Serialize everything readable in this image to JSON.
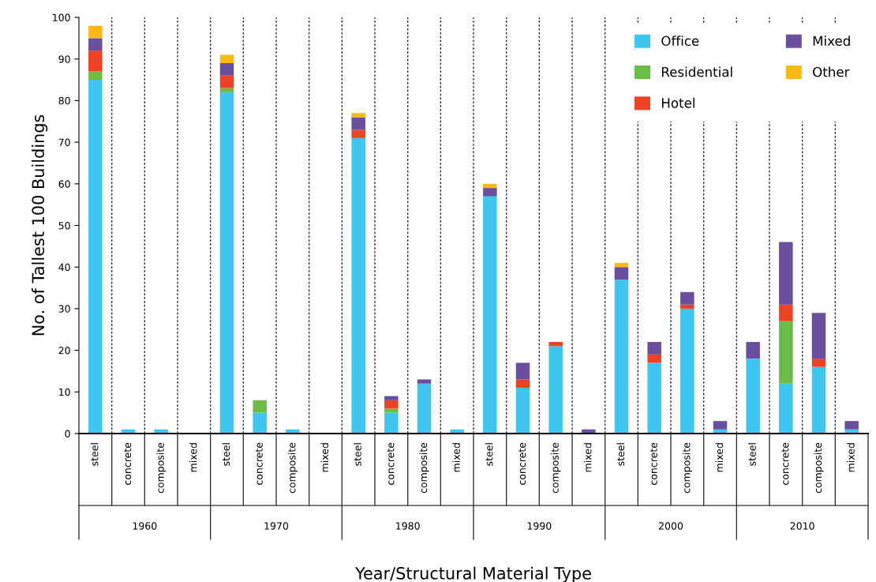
{
  "chart_data": {
    "type": "bar",
    "stacked": true,
    "xlabel": "Year/Structural Material Type",
    "ylabel": "No. of Tallest 100 Buildings",
    "categories": [
      "steel",
      "concrete",
      "composite",
      "mixed",
      "steel",
      "concrete",
      "composite",
      "mixed",
      "steel",
      "concrete",
      "composite",
      "mixed",
      "steel",
      "concrete",
      "composite",
      "mixed",
      "steel",
      "concrete",
      "composite",
      "mixed",
      "steel",
      "concrete",
      "composite",
      "mixed"
    ],
    "annotations": [
      "1960",
      "1970",
      "1980",
      "1990",
      "2000",
      "2010"
    ],
    "series": [
      {
        "name": "Office",
        "color": "#3ec6f0",
        "values": [
          85,
          1,
          1,
          0,
          82,
          5,
          1,
          0,
          71,
          5,
          12,
          1,
          57,
          11,
          21,
          0,
          37,
          17,
          30,
          1,
          18,
          12,
          16,
          1
        ]
      },
      {
        "name": "Residential",
        "color": "#6cbd45",
        "values": [
          2,
          0,
          0,
          0,
          1,
          3,
          0,
          0,
          0,
          1,
          0,
          0,
          0,
          0,
          0,
          0,
          0,
          0,
          0,
          0,
          0,
          15,
          0,
          0
        ]
      },
      {
        "name": "Hotel",
        "color": "#ef4123",
        "values": [
          5,
          0,
          0,
          0,
          3,
          0,
          0,
          0,
          2,
          2,
          0,
          0,
          0,
          2,
          1,
          0,
          0,
          2,
          1,
          0,
          0,
          4,
          2,
          0
        ]
      },
      {
        "name": "Mixed",
        "color": "#6a4f9f",
        "values": [
          3,
          0,
          0,
          0,
          3,
          0,
          0,
          0,
          3,
          1,
          1,
          0,
          2,
          4,
          0,
          1,
          3,
          3,
          3,
          2,
          4,
          15,
          11,
          2
        ]
      },
      {
        "name": "Other",
        "color": "#fdb913",
        "values": [
          3,
          0,
          0,
          0,
          2,
          0,
          0,
          0,
          1,
          0,
          0,
          0,
          1,
          0,
          0,
          0,
          1,
          0,
          0,
          0,
          0,
          0,
          0,
          0
        ]
      }
    ],
    "ylim": [
      0,
      100
    ],
    "yticks": [
      0,
      10,
      20,
      30,
      40,
      50,
      60,
      70,
      80,
      90,
      100
    ],
    "grid": "x",
    "legend": "top right"
  }
}
